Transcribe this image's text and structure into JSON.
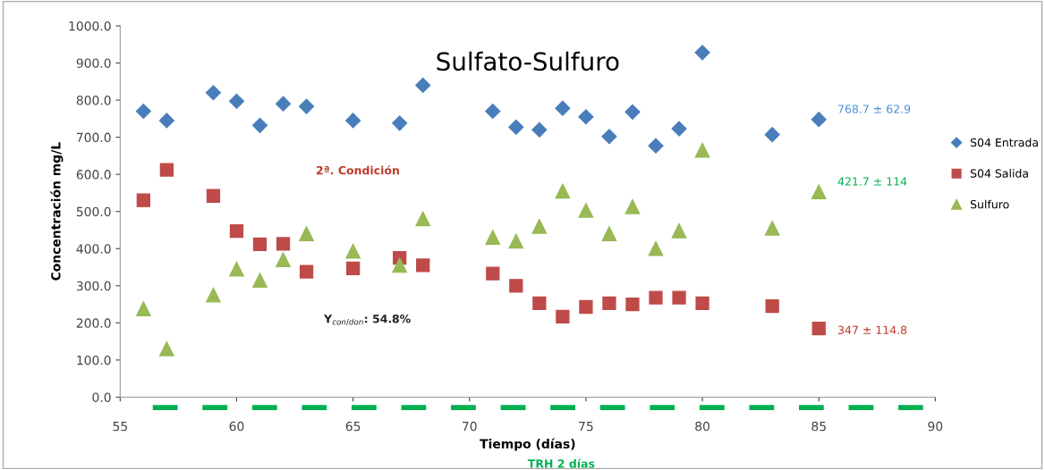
{
  "chart_data": {
    "type": "scatter",
    "title": "Sulfato-Sulfuro",
    "xlabel": "Tiempo (días)",
    "ylabel": "Concentración mg/L",
    "x": [
      56,
      57,
      59,
      60,
      61,
      62,
      63,
      65,
      67,
      68,
      71,
      72,
      73,
      74,
      75,
      76,
      77,
      78,
      79,
      80,
      83,
      85
    ],
    "series": [
      {
        "name": "S04 Entrada",
        "color": "#4a7ebb",
        "marker": "diamond",
        "values": [
          770,
          745,
          820,
          797,
          732,
          790,
          783,
          745,
          738,
          840,
          770,
          727,
          720,
          778,
          755,
          702,
          768,
          677,
          723,
          928,
          707,
          748
        ]
      },
      {
        "name": "S04 Salida",
        "color": "#be4b48",
        "marker": "square",
        "values": [
          530,
          612,
          542,
          447,
          412,
          413,
          338,
          347,
          375,
          355,
          333,
          300,
          253,
          217,
          243,
          253,
          250,
          268,
          268,
          253,
          245,
          185
        ]
      },
      {
        "name": "Sulfuro",
        "color": "#98b954",
        "marker": "triangle",
        "values": [
          238,
          130,
          275,
          345,
          315,
          370,
          440,
          393,
          355,
          480,
          430,
          420,
          460,
          555,
          503,
          440,
          513,
          400,
          448,
          665,
          455,
          553
        ]
      }
    ],
    "xlim": [
      55,
      90
    ],
    "xticks": [
      55,
      60,
      65,
      70,
      75,
      80,
      85,
      90
    ],
    "ylim": [
      0,
      1000
    ],
    "yticks": [
      {
        "value": 0,
        "label": "0.0"
      },
      {
        "value": 100,
        "label": "100.0"
      },
      {
        "value": 200,
        "label": "200.0"
      },
      {
        "value": 300,
        "label": "300.0"
      },
      {
        "value": 400,
        "label": "400.0"
      },
      {
        "value": 500,
        "label": "500.0"
      },
      {
        "value": 600,
        "label": "600.0"
      },
      {
        "value": 700,
        "label": "700.0"
      },
      {
        "value": 800,
        "label": "800.0"
      },
      {
        "value": 900,
        "label": "900.0"
      },
      {
        "value": 1000,
        "label": "1000.0"
      }
    ],
    "annotations": [
      "768.7 ± 62.9",
      "347 ± 114.8",
      "421.7 ± 114",
      "2ª. Condición",
      "Y$_{con/don}$: 54.8%",
      "TRH 2 días"
    ],
    "grid": false,
    "legend": "right"
  }
}
